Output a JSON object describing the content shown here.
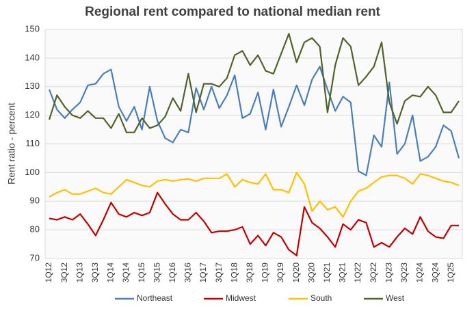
{
  "chart_data": {
    "type": "line",
    "title": "Regional rent compared to national median rent",
    "y_label": "Rent ratio - percent",
    "categories": [
      "1Q12",
      null,
      "3Q12",
      null,
      "1Q13",
      null,
      "3Q13",
      null,
      "1Q14",
      null,
      "3Q14",
      null,
      "1Q15",
      null,
      "3Q15",
      null,
      "1Q16",
      null,
      "3Q16",
      null,
      "1Q17",
      null,
      "3Q17",
      null,
      "1Q18",
      null,
      "3Q18",
      null,
      "1Q19",
      null,
      "3Q19",
      null,
      "1Q20",
      null,
      "3Q20",
      null,
      "1Q21",
      null,
      "3Q21",
      null,
      "1Q22",
      null,
      "3Q22",
      null,
      "1Q23",
      null,
      "3Q23",
      null,
      "1Q24",
      null,
      "3Q24",
      null,
      "1Q25",
      null
    ],
    "series": [
      {
        "name": "Northeast",
        "color": "#4a7ebb",
        "values": [
          129,
          122,
          119,
          122,
          124.5,
          130.5,
          131,
          134.5,
          136,
          123,
          118,
          123,
          115,
          130,
          118,
          112,
          110.5,
          115,
          114,
          129.5,
          122,
          130,
          122.5,
          127,
          134,
          119,
          120.5,
          128,
          115,
          129,
          116,
          123,
          130.5,
          123.5,
          132.5,
          137,
          129,
          121.5,
          126.5,
          124.5,
          100.5,
          99,
          113,
          109,
          131.5,
          106.5,
          110,
          120,
          104,
          105.5,
          109,
          116.5,
          114.5,
          105
        ]
      },
      {
        "name": "Midwest",
        "color": "#c00000",
        "values": [
          84,
          83.5,
          84.5,
          83.5,
          85.5,
          82,
          78,
          83.5,
          89.5,
          85.5,
          84.5,
          86,
          85,
          86,
          93,
          89,
          85.5,
          83.5,
          83.5,
          86,
          83,
          79,
          79.5,
          79.5,
          80,
          81,
          75,
          78,
          74.5,
          79,
          77.5,
          73,
          71,
          88,
          82.5,
          80.5,
          77.5,
          74,
          82,
          80,
          83.5,
          82.5,
          74,
          75.5,
          74,
          77.5,
          80.5,
          78.5,
          84.5,
          79.5,
          77.5,
          77,
          81.5,
          81.5
        ]
      },
      {
        "name": "South",
        "color": "#ffc000",
        "values": [
          91.5,
          93,
          94,
          92.5,
          92.5,
          93.5,
          94.5,
          93,
          92.5,
          95,
          97.5,
          96.5,
          95.5,
          95,
          97,
          97.5,
          97,
          97.5,
          97.8,
          97,
          98,
          98,
          98,
          99.5,
          95,
          97.5,
          96.5,
          96,
          99.5,
          94,
          94,
          93,
          100,
          96,
          86.5,
          90,
          87,
          88,
          84.5,
          90,
          93.5,
          94.5,
          96.5,
          98.5,
          99,
          99,
          98,
          96,
          99.5,
          99,
          98,
          97,
          96.5,
          95.5
        ]
      },
      {
        "name": "West",
        "color": "#4f6228",
        "values": [
          118.5,
          127,
          123,
          120,
          119,
          121.5,
          119,
          119,
          115.5,
          120.5,
          114,
          114,
          119,
          115.5,
          116.5,
          119.5,
          126,
          121.5,
          134.5,
          121,
          131,
          131,
          130,
          133,
          141,
          142.5,
          137.5,
          141,
          135.5,
          134.5,
          141.5,
          148.5,
          138.5,
          145.5,
          147,
          144,
          121,
          137.5,
          147,
          144,
          130.5,
          133.5,
          137,
          145.5,
          124.5,
          117,
          125,
          127,
          126.5,
          130,
          127,
          121,
          121,
          125
        ]
      }
    ],
    "ylim": [
      70,
      150
    ],
    "yticks": [
      70,
      80,
      90,
      100,
      110,
      120,
      130,
      140,
      150
    ],
    "grid": true,
    "legend": "bottom"
  }
}
